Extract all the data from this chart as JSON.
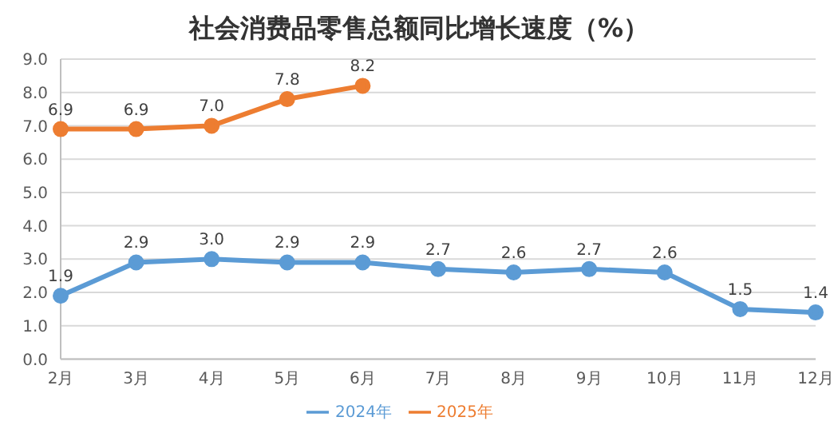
{
  "chart_data": {
    "type": "line",
    "title": "社会消费品零售总额同比增长速度（%）",
    "categories": [
      "2月",
      "3月",
      "4月",
      "5月",
      "6月",
      "7月",
      "8月",
      "9月",
      "10月",
      "11月",
      "12月"
    ],
    "series": [
      {
        "name": "2024年",
        "color": "#5b9bd5",
        "values": [
          1.9,
          2.9,
          3.0,
          2.9,
          2.9,
          2.7,
          2.6,
          2.7,
          2.6,
          1.5,
          1.4
        ],
        "value_labels": [
          "1.9",
          "2.9",
          "3.0",
          "2.9",
          "2.9",
          "2.7",
          "2.6",
          "2.7",
          "2.6",
          "1.5",
          "1.4"
        ]
      },
      {
        "name": "2025年",
        "color": "#ed7d31",
        "values": [
          6.9,
          6.9,
          7.0,
          7.8,
          8.2,
          null,
          null,
          null,
          null,
          null,
          null
        ],
        "value_labels": [
          "6.9",
          "6.9",
          "7.0",
          "7.8",
          "8.2",
          null,
          null,
          null,
          null,
          null,
          null
        ]
      }
    ],
    "ylim": [
      0,
      9
    ],
    "yticks": [
      {
        "value": 0,
        "label": "0.0"
      },
      {
        "value": 1,
        "label": "1.0"
      },
      {
        "value": 2,
        "label": "2.0"
      },
      {
        "value": 3,
        "label": "3.0"
      },
      {
        "value": 4,
        "label": "4.0"
      },
      {
        "value": 5,
        "label": "5.0"
      },
      {
        "value": 6,
        "label": "6.0"
      },
      {
        "value": 7,
        "label": "7.0"
      },
      {
        "value": 8,
        "label": "8.0"
      },
      {
        "value": 9,
        "label": "9.0"
      }
    ],
    "grid": "y",
    "legend": "bottom",
    "marker": "circle",
    "line_style": "solid"
  }
}
